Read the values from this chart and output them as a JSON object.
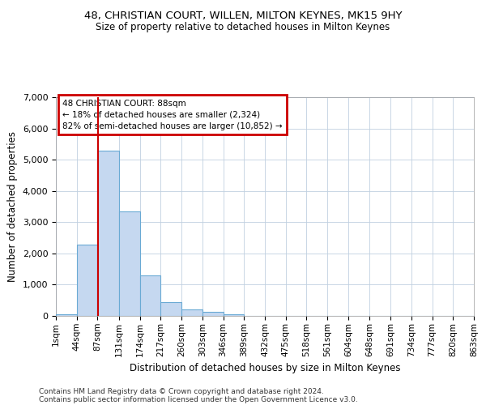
{
  "title1": "48, CHRISTIAN COURT, WILLEN, MILTON KEYNES, MK15 9HY",
  "title2": "Size of property relative to detached houses in Milton Keynes",
  "xlabel": "Distribution of detached houses by size in Milton Keynes",
  "ylabel": "Number of detached properties",
  "footer1": "Contains HM Land Registry data © Crown copyright and database right 2024.",
  "footer2": "Contains public sector information licensed under the Open Government Licence v3.0.",
  "annotation_line1": "48 CHRISTIAN COURT: 88sqm",
  "annotation_line2": "← 18% of detached houses are smaller (2,324)",
  "annotation_line3": "82% of semi-detached houses are larger (10,852) →",
  "property_size_sqm": 88,
  "bin_edges": [
    1,
    44,
    87,
    131,
    174,
    217,
    260,
    303,
    346,
    389,
    432,
    475,
    518,
    561,
    604,
    648,
    691,
    734,
    777,
    820,
    863
  ],
  "bar_heights": [
    60,
    2280,
    5280,
    3350,
    1290,
    440,
    200,
    130,
    60,
    0,
    0,
    0,
    0,
    0,
    0,
    0,
    0,
    0,
    0,
    0
  ],
  "bar_color": "#c5d8f0",
  "bar_edge_color": "#6aaad4",
  "vertical_line_color": "#cc0000",
  "annotation_box_color": "#cc0000",
  "background_color": "#ffffff",
  "grid_color": "#c0d0e0",
  "ylim": [
    0,
    7000
  ],
  "yticks": [
    0,
    1000,
    2000,
    3000,
    4000,
    5000,
    6000,
    7000
  ]
}
